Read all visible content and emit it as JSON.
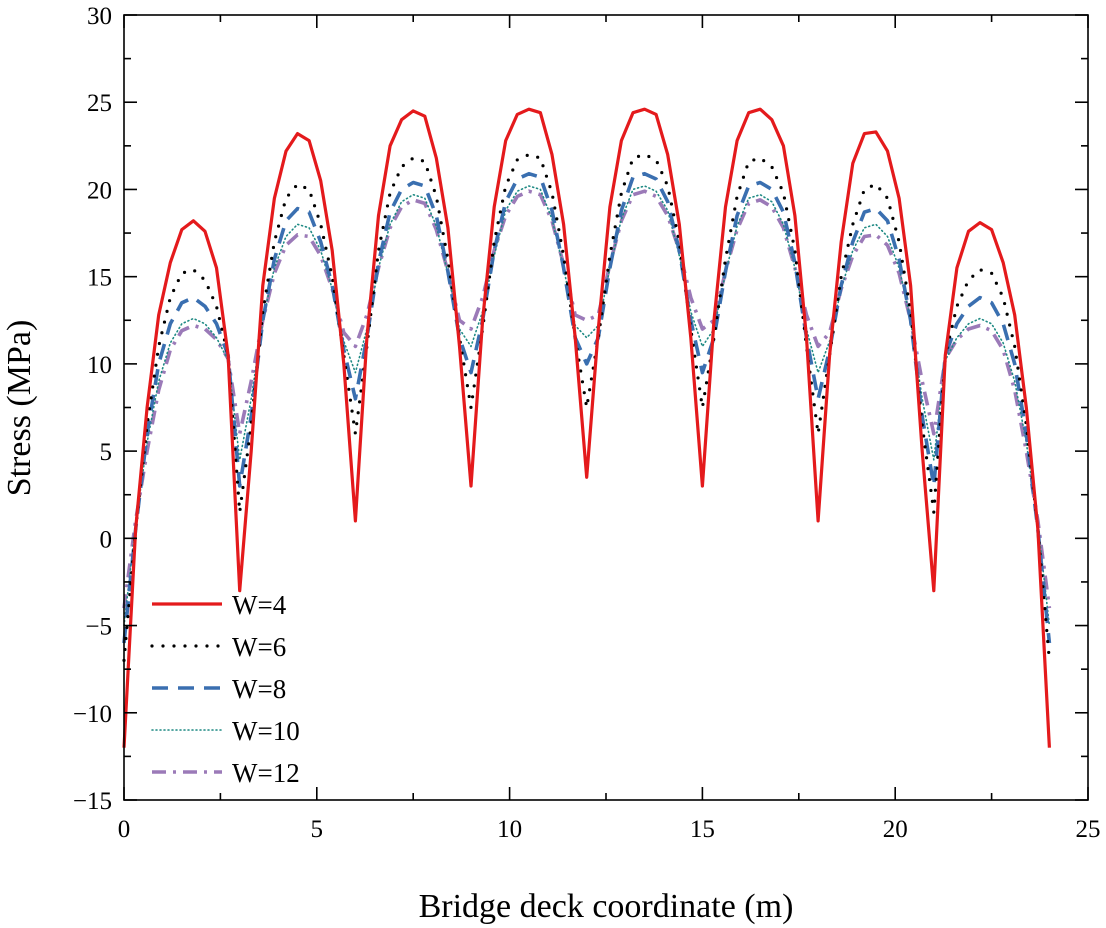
{
  "chart_data": {
    "type": "line",
    "title": "",
    "xlabel": "Bridge deck coordinate (m)",
    "ylabel": "Stress (MPa)",
    "xlim": [
      0,
      25
    ],
    "ylim": [
      -15,
      30
    ],
    "xticks": [
      0,
      5,
      10,
      15,
      20,
      25
    ],
    "xtick_labels": [
      "0",
      "5",
      "10",
      "15",
      "20",
      "25"
    ],
    "yticks": [
      -15,
      -10,
      -5,
      0,
      5,
      10,
      15,
      20,
      25,
      30
    ],
    "ytick_labels": [
      "−15",
      "−10",
      "−5",
      "0",
      "5",
      "10",
      "15",
      "20",
      "25",
      "30"
    ],
    "grid": false,
    "legend_position": "lower-left",
    "x": [
      0,
      0.3,
      0.6,
      0.9,
      1.2,
      1.5,
      1.8,
      2.1,
      2.4,
      2.7,
      3.0,
      3.3,
      3.6,
      3.9,
      4.2,
      4.5,
      4.8,
      5.1,
      5.4,
      5.7,
      6.0,
      6.3,
      6.6,
      6.9,
      7.2,
      7.5,
      7.8,
      8.1,
      8.4,
      8.7,
      9.0,
      9.3,
      9.6,
      9.9,
      10.2,
      10.5,
      10.8,
      11.1,
      11.4,
      11.7,
      12.0,
      12.3,
      12.6,
      12.9,
      13.2,
      13.5,
      13.8,
      14.1,
      14.4,
      14.7,
      15.0,
      15.3,
      15.6,
      15.9,
      16.2,
      16.5,
      16.8,
      17.1,
      17.4,
      17.7,
      18.0,
      18.3,
      18.6,
      18.9,
      19.2,
      19.5,
      19.8,
      20.1,
      20.4,
      20.7,
      21.0,
      21.3,
      21.6,
      21.9,
      22.2,
      22.5,
      22.8,
      23.1,
      23.4,
      23.7,
      24.0
    ],
    "series": [
      {
        "name": "W=4",
        "color": "#e41a1c",
        "style": "solid",
        "values": [
          -12.0,
          0.5,
          7.5,
          12.8,
          15.8,
          17.7,
          18.2,
          17.6,
          15.5,
          10.5,
          -3.0,
          5.0,
          14.5,
          19.5,
          22.2,
          23.2,
          22.8,
          20.5,
          16.5,
          10.0,
          1.0,
          11.5,
          18.5,
          22.5,
          24.0,
          24.5,
          24.2,
          21.8,
          17.8,
          11.0,
          3.0,
          12.5,
          19.0,
          22.8,
          24.3,
          24.6,
          24.4,
          22.0,
          18.0,
          11.5,
          3.5,
          12.0,
          19.0,
          22.8,
          24.4,
          24.6,
          24.3,
          22.0,
          18.0,
          11.5,
          3.0,
          12.5,
          19.0,
          22.8,
          24.4,
          24.6,
          24.0,
          22.5,
          18.5,
          11.5,
          1.0,
          10.5,
          17.0,
          21.5,
          23.2,
          23.3,
          22.2,
          19.5,
          14.5,
          5.0,
          -3.0,
          10.5,
          15.5,
          17.6,
          18.1,
          17.7,
          15.8,
          12.8,
          7.5,
          0.5,
          -12.0
        ]
      },
      {
        "name": "W=6",
        "color": "#000000",
        "style": "dotted",
        "values": [
          -7.0,
          0.5,
          6.5,
          11.0,
          13.8,
          15.2,
          15.4,
          14.8,
          13.3,
          10.5,
          1.5,
          6.5,
          13.0,
          17.0,
          19.5,
          20.3,
          20.0,
          18.0,
          15.0,
          10.5,
          6.0,
          11.0,
          16.5,
          19.8,
          21.3,
          21.8,
          21.6,
          19.6,
          16.0,
          11.5,
          7.5,
          12.0,
          17.0,
          20.2,
          21.7,
          22.0,
          21.8,
          19.8,
          16.2,
          11.5,
          7.5,
          11.5,
          16.2,
          19.8,
          21.8,
          22.0,
          21.7,
          20.2,
          17.0,
          12.0,
          7.5,
          11.5,
          16.0,
          19.6,
          21.6,
          21.8,
          21.3,
          19.8,
          16.5,
          11.0,
          6.0,
          10.5,
          15.0,
          18.0,
          20.0,
          20.3,
          19.5,
          17.0,
          13.0,
          6.5,
          1.5,
          10.5,
          13.3,
          14.8,
          15.4,
          15.2,
          13.8,
          11.0,
          6.5,
          0.5,
          -7.0
        ]
      },
      {
        "name": "W=8",
        "color": "#3a6fb0",
        "style": "dashed",
        "values": [
          -6.0,
          0.5,
          6.0,
          10.0,
          12.3,
          13.5,
          13.8,
          13.3,
          12.3,
          10.5,
          3.0,
          7.0,
          12.5,
          16.0,
          18.2,
          18.9,
          18.7,
          17.0,
          14.5,
          10.8,
          8.0,
          11.5,
          15.8,
          18.7,
          20.0,
          20.4,
          20.2,
          18.5,
          15.3,
          11.5,
          9.5,
          12.5,
          16.5,
          19.3,
          20.6,
          20.9,
          20.7,
          18.8,
          15.5,
          11.5,
          10.0,
          11.5,
          15.5,
          18.8,
          20.7,
          20.9,
          20.6,
          19.3,
          16.5,
          12.5,
          9.5,
          11.5,
          15.3,
          18.5,
          20.2,
          20.4,
          20.0,
          18.7,
          15.8,
          11.5,
          8.0,
          10.8,
          14.5,
          17.0,
          18.7,
          18.9,
          18.2,
          16.0,
          12.5,
          7.0,
          3.0,
          10.5,
          12.3,
          13.3,
          13.8,
          13.5,
          12.3,
          10.0,
          6.0,
          0.5,
          -6.0
        ]
      },
      {
        "name": "W=10",
        "color": "#1f8a84",
        "style": "fine-dotted",
        "values": [
          -5.0,
          0.8,
          5.5,
          9.0,
          11.2,
          12.3,
          12.6,
          12.3,
          11.5,
          10.2,
          4.5,
          8.0,
          12.5,
          15.5,
          17.3,
          18.0,
          17.8,
          16.5,
          14.3,
          11.3,
          9.5,
          12.0,
          15.5,
          18.0,
          19.3,
          19.7,
          19.5,
          17.9,
          15.2,
          12.0,
          11.0,
          13.0,
          16.2,
          18.8,
          19.9,
          20.2,
          20.0,
          18.3,
          15.5,
          12.2,
          11.5,
          12.2,
          15.5,
          18.3,
          20.0,
          20.2,
          19.9,
          18.8,
          16.2,
          13.0,
          11.0,
          12.0,
          15.2,
          17.9,
          19.5,
          19.7,
          19.3,
          18.0,
          15.5,
          12.0,
          9.5,
          11.3,
          14.3,
          16.5,
          17.8,
          18.0,
          17.3,
          15.5,
          12.5,
          8.0,
          4.5,
          10.2,
          11.5,
          12.3,
          12.6,
          12.3,
          11.2,
          9.0,
          5.5,
          0.8,
          -5.0
        ]
      },
      {
        "name": "W=12",
        "color": "#9b7ab8",
        "style": "dash-dot",
        "values": [
          -4.0,
          1.0,
          5.0,
          8.5,
          10.8,
          11.9,
          12.2,
          12.0,
          11.4,
          10.3,
          6.0,
          9.0,
          12.5,
          15.2,
          16.8,
          17.4,
          17.3,
          16.2,
          14.3,
          11.8,
          11.0,
          12.8,
          15.5,
          17.8,
          19.0,
          19.4,
          19.2,
          17.7,
          15.3,
          12.5,
          12.0,
          13.8,
          16.5,
          18.5,
          19.6,
          19.9,
          19.7,
          18.2,
          15.7,
          12.8,
          12.5,
          12.8,
          15.7,
          18.2,
          19.7,
          19.9,
          19.6,
          18.5,
          16.5,
          13.8,
          12.0,
          12.5,
          15.3,
          17.7,
          19.2,
          19.4,
          19.0,
          17.8,
          15.5,
          12.8,
          11.0,
          11.8,
          14.3,
          16.2,
          17.3,
          17.4,
          16.8,
          15.2,
          12.5,
          9.0,
          6.0,
          10.3,
          11.4,
          12.0,
          12.2,
          11.9,
          10.8,
          8.5,
          5.0,
          1.0,
          -4.0
        ]
      }
    ]
  }
}
